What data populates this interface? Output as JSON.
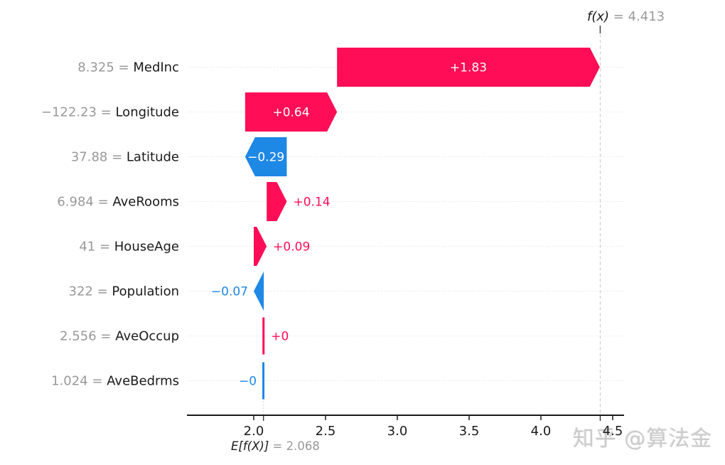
{
  "watermark": {
    "text": "知乎 @算法金",
    "color": "#cbcbcb"
  },
  "chart_data": {
    "type": "bar",
    "subtype": "shap-waterfall",
    "title": "",
    "fx_label": "f(x)",
    "fx_value_text": "= 4.413",
    "fx_value": 4.413,
    "base_label": "E[f(X)]",
    "base_value_text": "= 2.068",
    "base_value": 2.068,
    "xlim": [
      1.535,
      4.579
    ],
    "x_ticks": [
      2.0,
      2.5,
      3.0,
      3.5,
      4.0,
      4.5
    ],
    "x_tick_labels": [
      "2.0",
      "2.5",
      "3.0",
      "3.5",
      "4.0",
      "4.5"
    ],
    "grid": "dotted-horizontal",
    "legend": "none",
    "colors": {
      "positive": "#ff0d57",
      "negative": "#1e88e5",
      "value_gray": "#999999",
      "text_black": "#1a1a1a",
      "guide_gray": "#c9c9c9",
      "grid_gray": "#e4e4e4",
      "bar_label_inside": "#ffffff"
    },
    "features": [
      {
        "name": "MedInc",
        "data_value": "8.325",
        "shap": 1.83,
        "label": "+1.83",
        "label_inside": true,
        "thin": false
      },
      {
        "name": "Longitude",
        "data_value": "−122.23",
        "shap": 0.64,
        "label": "+0.64",
        "label_inside": true,
        "thin": false
      },
      {
        "name": "Latitude",
        "data_value": "37.88",
        "shap": -0.29,
        "label": "−0.29",
        "label_inside": true,
        "thin": false
      },
      {
        "name": "AveRooms",
        "data_value": "6.984",
        "shap": 0.14,
        "label": "+0.14",
        "label_inside": false,
        "thin": false
      },
      {
        "name": "HouseAge",
        "data_value": "41",
        "shap": 0.09,
        "label": "+0.09",
        "label_inside": false,
        "thin": false
      },
      {
        "name": "Population",
        "data_value": "322",
        "shap": -0.07,
        "label": "−0.07",
        "label_inside": false,
        "thin": false
      },
      {
        "name": "AveOccup",
        "data_value": "2.556",
        "shap": 0.004,
        "label": "+0",
        "label_inside": false,
        "thin": true
      },
      {
        "name": "AveBedrms",
        "data_value": "1.024",
        "shap": -0.002,
        "label": "−0",
        "label_inside": false,
        "thin": true
      }
    ]
  }
}
